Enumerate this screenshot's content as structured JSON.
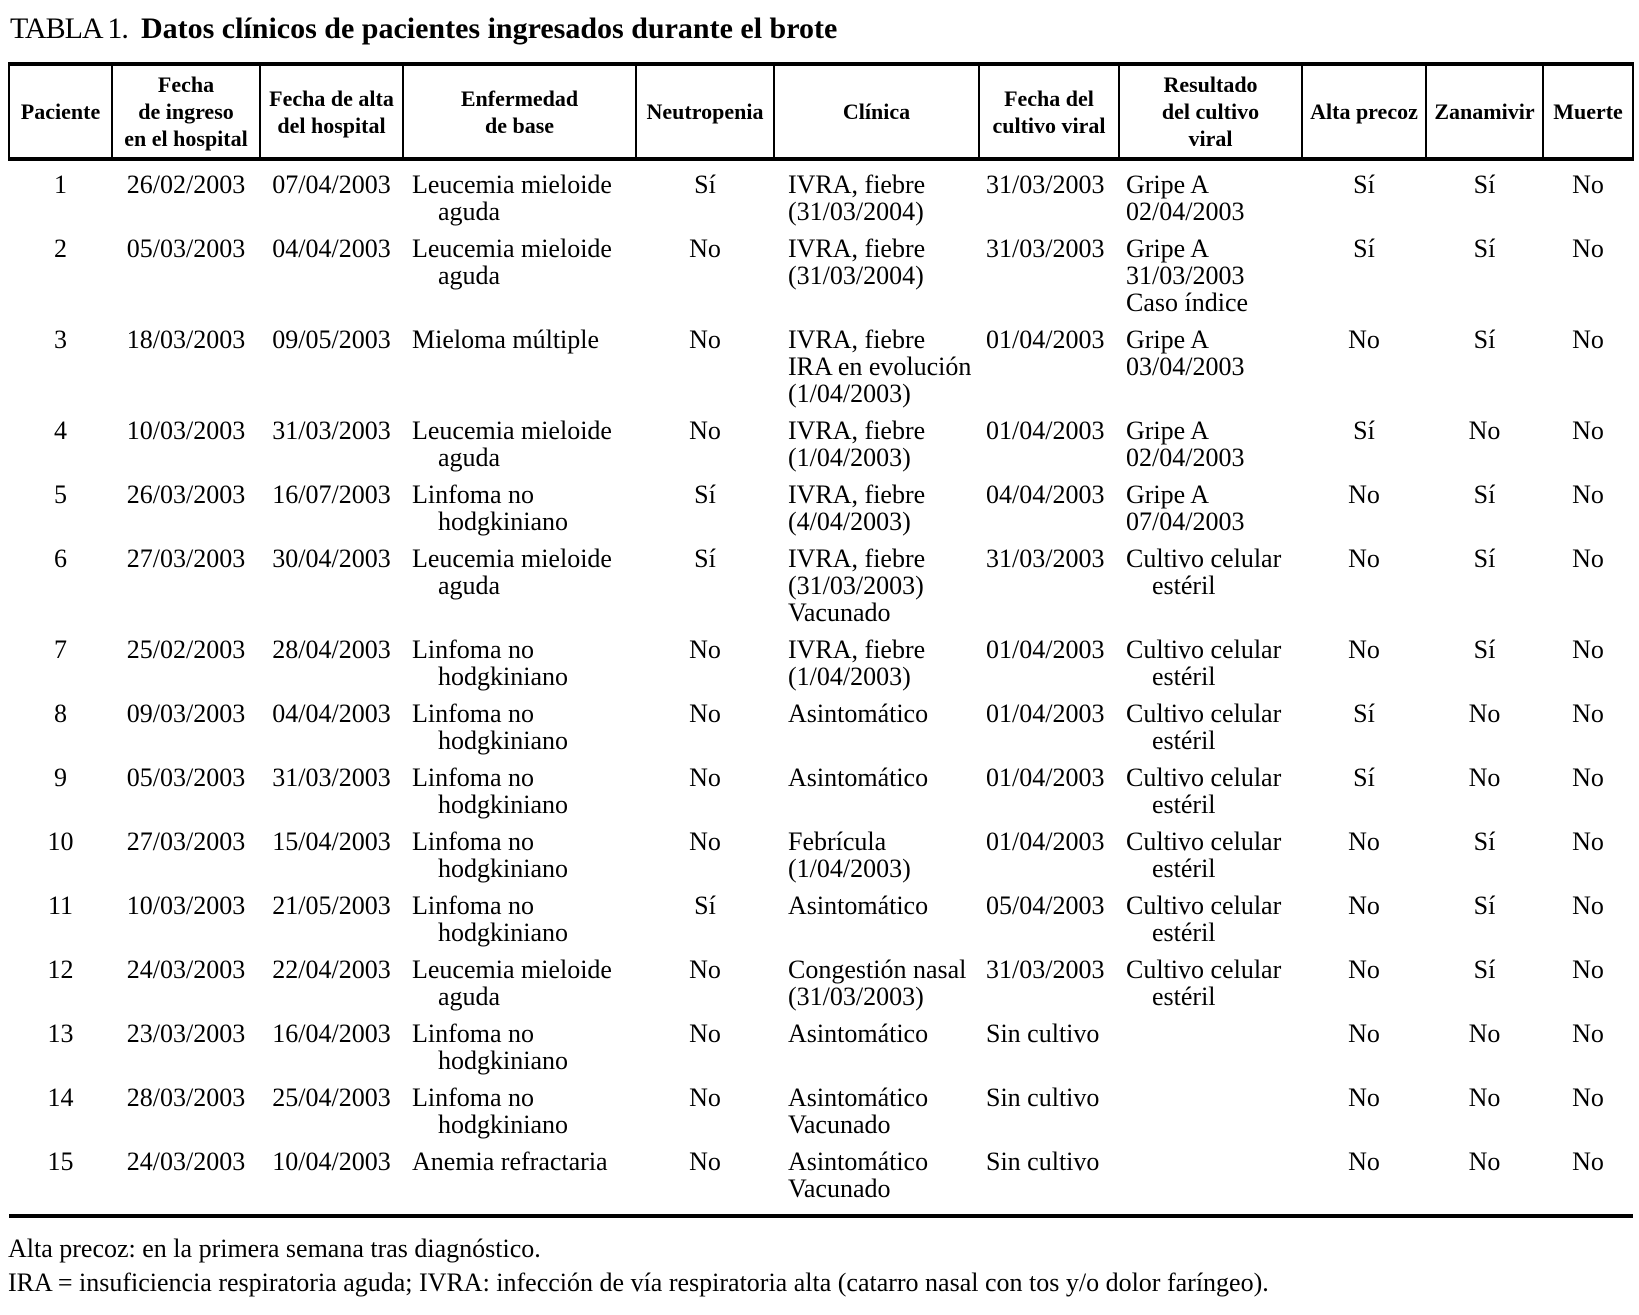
{
  "title": {
    "label": "TABLA 1.",
    "text": "Datos clínicos de pacientes ingresados durante el brote"
  },
  "table": {
    "columns": [
      {
        "key": "paciente",
        "header": "Paciente"
      },
      {
        "key": "fecha_ingreso",
        "header": "Fecha\nde ingreso\nen el hospital"
      },
      {
        "key": "fecha_alta",
        "header": "Fecha de alta\ndel hospital"
      },
      {
        "key": "enfermedad",
        "header": "Enfermedad\nde base"
      },
      {
        "key": "neutropenia",
        "header": "Neutropenia"
      },
      {
        "key": "clinica",
        "header": "Clínica"
      },
      {
        "key": "fecha_cultivo",
        "header": "Fecha del\ncultivo viral"
      },
      {
        "key": "resultado",
        "header": "Resultado\ndel cultivo\nviral"
      },
      {
        "key": "alta_precoz",
        "header": "Alta precoz"
      },
      {
        "key": "zanamivir",
        "header": "Zanamivir"
      },
      {
        "key": "muerte",
        "header": "Muerte"
      }
    ],
    "rows": [
      [
        "1",
        "26/02/2003",
        "07/04/2003",
        "Leucemia mieloide\n    aguda",
        "Sí",
        "IVRA, fiebre\n(31/03/2004)",
        "31/03/2003",
        "Gripe A\n02/04/2003",
        "Sí",
        "Sí",
        "No"
      ],
      [
        "2",
        "05/03/2003",
        "04/04/2003",
        "Leucemia mieloide\n    aguda",
        "No",
        "IVRA, fiebre\n(31/03/2004)",
        "31/03/2003",
        "Gripe A\n31/03/2003\nCaso índice",
        "Sí",
        "Sí",
        "No"
      ],
      [
        "3",
        "18/03/2003",
        "09/05/2003",
        "Mieloma múltiple",
        "No",
        "IVRA, fiebre\nIRA en evolución\n(1/04/2003)",
        "01/04/2003",
        "Gripe A\n03/04/2003",
        "No",
        "Sí",
        "No"
      ],
      [
        "4",
        "10/03/2003",
        "31/03/2003",
        "Leucemia mieloide\n    aguda",
        "No",
        "IVRA, fiebre\n(1/04/2003)",
        "01/04/2003",
        "Gripe A\n02/04/2003",
        "Sí",
        "No",
        "No"
      ],
      [
        "5",
        "26/03/2003",
        "16/07/2003",
        "Linfoma no\n    hodgkiniano",
        "Sí",
        "IVRA, fiebre\n(4/04/2003)",
        "04/04/2003",
        "Gripe A\n07/04/2003",
        "No",
        "Sí",
        "No"
      ],
      [
        "6",
        "27/03/2003",
        "30/04/2003",
        "Leucemia mieloide\n    aguda",
        "Sí",
        "IVRA, fiebre\n(31/03/2003)\nVacunado",
        "31/03/2003",
        "Cultivo celular\n    estéril",
        "No",
        "Sí",
        "No"
      ],
      [
        "7",
        "25/02/2003",
        "28/04/2003",
        "Linfoma no\n    hodgkiniano",
        "No",
        "IVRA, fiebre\n(1/04/2003)",
        "01/04/2003",
        "Cultivo celular\n    estéril",
        "No",
        "Sí",
        "No"
      ],
      [
        "8",
        "09/03/2003",
        "04/04/2003",
        "Linfoma no\n    hodgkiniano",
        "No",
        "Asintomático",
        "01/04/2003",
        "Cultivo celular\n    estéril",
        "Sí",
        "No",
        "No"
      ],
      [
        "9",
        "05/03/2003",
        "31/03/2003",
        "Linfoma no\n    hodgkiniano",
        "No",
        "Asintomático",
        "01/04/2003",
        "Cultivo celular\n    estéril",
        "Sí",
        "No",
        "No"
      ],
      [
        "10",
        "27/03/2003",
        "15/04/2003",
        "Linfoma no\n    hodgkiniano",
        "No",
        "Febrícula\n(1/04/2003)",
        "01/04/2003",
        "Cultivo celular\n    estéril",
        "No",
        "Sí",
        "No"
      ],
      [
        "11",
        "10/03/2003",
        "21/05/2003",
        "Linfoma no\n    hodgkiniano",
        "Sí",
        "Asintomático",
        "05/04/2003",
        "Cultivo celular\n    estéril",
        "No",
        "Sí",
        "No"
      ],
      [
        "12",
        "24/03/2003",
        "22/04/2003",
        "Leucemia mieloide\n    aguda",
        "No",
        "Congestión nasal\n(31/03/2003)",
        "31/03/2003",
        "Cultivo celular\n    estéril",
        "No",
        "Sí",
        "No"
      ],
      [
        "13",
        "23/03/2003",
        "16/04/2003",
        "Linfoma no\n    hodgkiniano",
        "No",
        "Asintomático",
        "Sin cultivo",
        "",
        "No",
        "No",
        "No"
      ],
      [
        "14",
        "28/03/2003",
        "25/04/2003",
        "Linfoma no\n    hodgkiniano",
        "No",
        "Asintomático\nVacunado",
        "Sin cultivo",
        "",
        "No",
        "No",
        "No"
      ],
      [
        "15",
        "24/03/2003",
        "10/04/2003",
        "Anemia refractaria",
        "No",
        "Asintomático\nVacunado",
        "Sin cultivo",
        "",
        "No",
        "No",
        "No"
      ]
    ]
  },
  "footnotes": [
    "Alta precoz: en la primera semana tras diagnóstico.",
    "IRA = insuficiencia respiratoria aguda; IVRA: infección de vía respiratoria alta (catarro nasal con tos y/o dolor faríngeo)."
  ],
  "colors": {
    "text": "#000000",
    "background": "#ffffff",
    "border": "#000000"
  }
}
